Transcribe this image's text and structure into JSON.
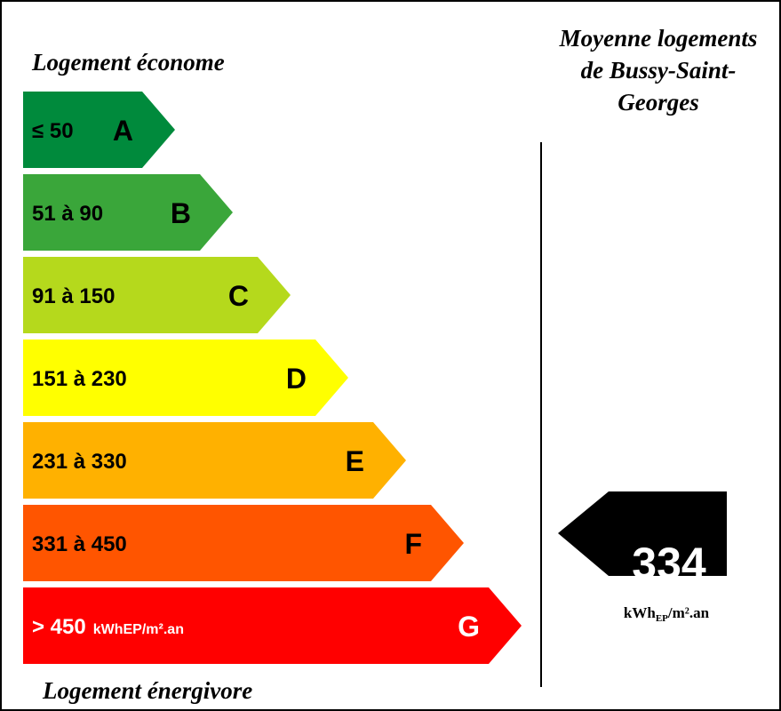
{
  "header": {
    "left_title": "Logement économe",
    "right_title": [
      "Moyenne logements",
      "de Bussy-Saint-",
      "Georges"
    ]
  },
  "classes": [
    {
      "range": "≤ 50",
      "letter": "A",
      "color": "#008a3c"
    },
    {
      "range": "51 à 90",
      "letter": "B",
      "color": "#3aa63a"
    },
    {
      "range": "91 à 150",
      "letter": "C",
      "color": "#b5d91c"
    },
    {
      "range": "151 à 230",
      "letter": "D",
      "color": "#ffff00"
    },
    {
      "range": "231 à 330",
      "letter": "E",
      "color": "#ffb100"
    },
    {
      "range": "331 à 450",
      "letter": "F",
      "color": "#ff5500"
    },
    {
      "range": "> 450",
      "letter": "G",
      "color": "#ff0000",
      "unit": "kWhEP/m².an"
    }
  ],
  "average": {
    "value": "334",
    "unit": "kWh",
    "unit_sub": "EP",
    "unit_rest": "/m².an"
  },
  "footer": {
    "left_title": "Logement énergivore"
  }
}
